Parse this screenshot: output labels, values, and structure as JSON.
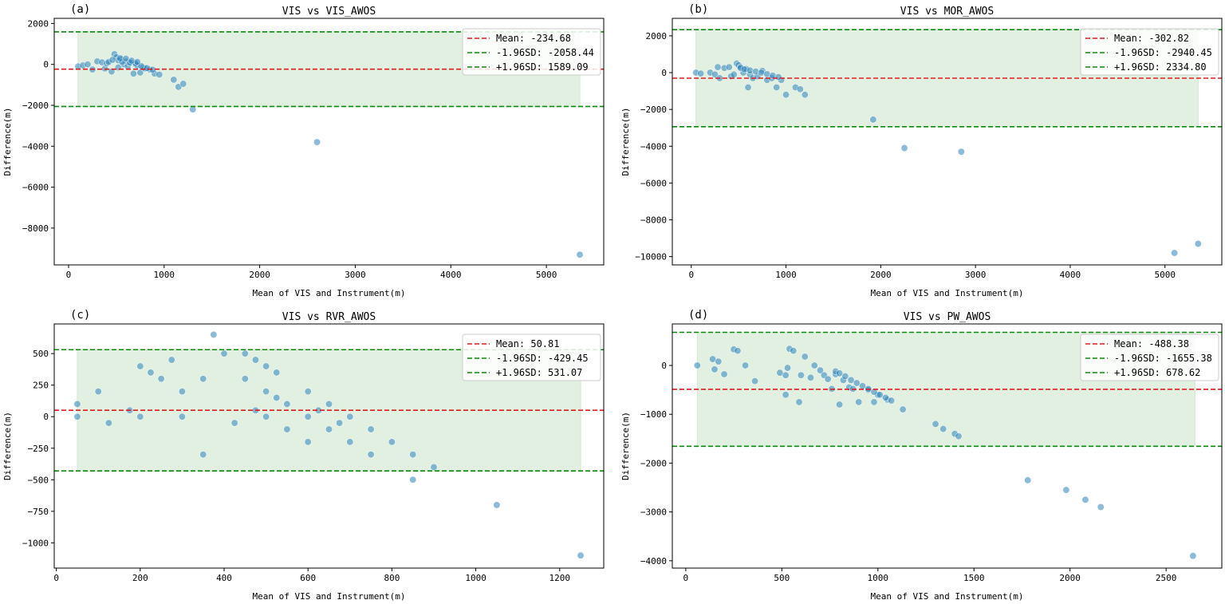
{
  "chart_data": [
    {
      "type": "scatter",
      "panel_label": "(a)",
      "title": "VIS vs VIS_AWOS",
      "xlabel": "Mean of VIS and Instrument(m)",
      "ylabel": "Difference(m)",
      "xlim": [
        -150,
        5600
      ],
      "ylim": [
        -9800,
        2250
      ],
      "xticks": [
        0,
        1000,
        2000,
        3000,
        4000,
        5000
      ],
      "yticks": [
        -8000,
        -6000,
        -4000,
        -2000,
        0,
        2000
      ],
      "mean": -234.68,
      "lower": -2058.44,
      "upper": 1589.09,
      "band_x": [
        100,
        5350
      ],
      "legend_position": "upper right",
      "legend": [
        "Mean: -234.68",
        "-1.96SD: -2058.44",
        "+1.96SD: 1589.09"
      ],
      "points": [
        [
          100,
          -100
        ],
        [
          150,
          -50
        ],
        [
          200,
          0
        ],
        [
          250,
          -250
        ],
        [
          300,
          150
        ],
        [
          350,
          100
        ],
        [
          380,
          -200
        ],
        [
          400,
          50
        ],
        [
          450,
          -350
        ],
        [
          480,
          500
        ],
        [
          500,
          350
        ],
        [
          520,
          -150
        ],
        [
          550,
          250
        ],
        [
          580,
          0
        ],
        [
          600,
          150
        ],
        [
          620,
          -100
        ],
        [
          650,
          100
        ],
        [
          680,
          -450
        ],
        [
          700,
          0
        ],
        [
          720,
          -50
        ],
        [
          750,
          -400
        ],
        [
          780,
          -150
        ],
        [
          800,
          -200
        ],
        [
          850,
          -250
        ],
        [
          900,
          -450
        ],
        [
          950,
          -500
        ],
        [
          1100,
          -750
        ],
        [
          1150,
          -1100
        ],
        [
          1200,
          -950
        ],
        [
          1300,
          -2200
        ],
        [
          2600,
          -3800
        ],
        [
          5350,
          -9300
        ],
        [
          520,
          200
        ],
        [
          560,
          120
        ],
        [
          640,
          80
        ],
        [
          700,
          60
        ],
        [
          760,
          -80
        ],
        [
          820,
          -180
        ],
        [
          880,
          -260
        ],
        [
          420,
          120
        ],
        [
          460,
          220
        ],
        [
          540,
          300
        ],
        [
          600,
          280
        ],
        [
          660,
          180
        ],
        [
          720,
          120
        ]
      ]
    },
    {
      "type": "scatter",
      "panel_label": "(b)",
      "title": "VIS vs MOR_AWOS",
      "xlabel": "Mean of VIS and Instrument(m)",
      "ylabel": "Difference(m)",
      "xlim": [
        -200,
        5600
      ],
      "ylim": [
        -10450,
        2950
      ],
      "xticks": [
        0,
        1000,
        2000,
        3000,
        4000,
        5000
      ],
      "yticks": [
        -10000,
        -8000,
        -6000,
        -4000,
        -2000,
        0,
        2000
      ],
      "mean": -302.82,
      "lower": -2940.45,
      "upper": 2334.8,
      "band_x": [
        50,
        5350
      ],
      "legend_position": "upper right",
      "legend": [
        "Mean: -302.82",
        "-1.96SD: -2940.45",
        "+1.96SD: 2334.80"
      ],
      "points": [
        [
          50,
          0
        ],
        [
          100,
          -50
        ],
        [
          200,
          0
        ],
        [
          250,
          -100
        ],
        [
          280,
          300
        ],
        [
          300,
          -300
        ],
        [
          350,
          250
        ],
        [
          400,
          300
        ],
        [
          420,
          -200
        ],
        [
          450,
          -100
        ],
        [
          480,
          500
        ],
        [
          500,
          400
        ],
        [
          520,
          300
        ],
        [
          550,
          0
        ],
        [
          580,
          200
        ],
        [
          600,
          -800
        ],
        [
          620,
          -100
        ],
        [
          650,
          -300
        ],
        [
          700,
          -200
        ],
        [
          750,
          100
        ],
        [
          800,
          -400
        ],
        [
          850,
          -300
        ],
        [
          900,
          -800
        ],
        [
          950,
          -400
        ],
        [
          1000,
          -1200
        ],
        [
          1100,
          -800
        ],
        [
          1150,
          -900
        ],
        [
          1200,
          -1200
        ],
        [
          1920,
          -2550
        ],
        [
          2250,
          -4100
        ],
        [
          2850,
          -4300
        ],
        [
          5100,
          -9800
        ],
        [
          5350,
          -9300
        ],
        [
          520,
          250
        ],
        [
          560,
          180
        ],
        [
          620,
          120
        ],
        [
          680,
          60
        ],
        [
          740,
          0
        ],
        [
          800,
          -80
        ],
        [
          860,
          -160
        ],
        [
          920,
          -240
        ]
      ]
    },
    {
      "type": "scatter",
      "panel_label": "(c)",
      "title": "VIS vs RVR_AWOS",
      "xlabel": "Mean of VIS and Instrument(m)",
      "ylabel": "Difference(m)",
      "xlim": [
        -5,
        1305
      ],
      "ylim": [
        -1200,
        735
      ],
      "xticks": [
        0,
        200,
        400,
        600,
        800,
        1000,
        1200
      ],
      "yticks": [
        -1000,
        -750,
        -500,
        -250,
        0,
        250,
        500
      ],
      "mean": 50.81,
      "lower": -429.45,
      "upper": 531.07,
      "band_x": [
        50,
        1250
      ],
      "legend_position": "upper right",
      "legend": [
        "Mean: 50.81",
        "-1.96SD: -429.45",
        "+1.96SD: 531.07"
      ],
      "points": [
        [
          50,
          100
        ],
        [
          50,
          0
        ],
        [
          100,
          200
        ],
        [
          125,
          -50
        ],
        [
          175,
          50
        ],
        [
          200,
          400
        ],
        [
          200,
          0
        ],
        [
          225,
          350
        ],
        [
          250,
          300
        ],
        [
          275,
          450
        ],
        [
          300,
          200
        ],
        [
          300,
          0
        ],
        [
          350,
          300
        ],
        [
          350,
          -300
        ],
        [
          375,
          650
        ],
        [
          400,
          500
        ],
        [
          425,
          -50
        ],
        [
          450,
          500
        ],
        [
          450,
          300
        ],
        [
          475,
          450
        ],
        [
          475,
          50
        ],
        [
          500,
          400
        ],
        [
          500,
          200
        ],
        [
          500,
          0
        ],
        [
          525,
          350
        ],
        [
          525,
          150
        ],
        [
          550,
          100
        ],
        [
          550,
          -100
        ],
        [
          600,
          200
        ],
        [
          600,
          0
        ],
        [
          600,
          -200
        ],
        [
          625,
          50
        ],
        [
          650,
          100
        ],
        [
          650,
          -100
        ],
        [
          675,
          -50
        ],
        [
          700,
          0
        ],
        [
          700,
          -200
        ],
        [
          750,
          -100
        ],
        [
          750,
          -300
        ],
        [
          800,
          -200
        ],
        [
          850,
          -300
        ],
        [
          850,
          -500
        ],
        [
          900,
          -400
        ],
        [
          1050,
          -700
        ],
        [
          1250,
          -1100
        ]
      ]
    },
    {
      "type": "scatter",
      "panel_label": "(d)",
      "title": "VIS vs PW_AWOS",
      "xlabel": "Mean of VIS and Instrument(m)",
      "ylabel": "Difference(m)",
      "xlim": [
        -70,
        2790
      ],
      "ylim": [
        -4150,
        850
      ],
      "xticks": [
        0,
        500,
        1000,
        1500,
        2000,
        2500
      ],
      "yticks": [
        -4000,
        -3000,
        -2000,
        -1000,
        0
      ],
      "mean": -488.38,
      "lower": -1655.38,
      "upper": 678.62,
      "band_x": [
        60,
        2650
      ],
      "legend_position": "upper right",
      "legend": [
        "Mean: -488.38",
        "-1.96SD: -1655.38",
        "+1.96SD: 678.62"
      ],
      "points": [
        [
          60,
          0
        ],
        [
          140,
          130
        ],
        [
          150,
          -80
        ],
        [
          170,
          80
        ],
        [
          200,
          -180
        ],
        [
          250,
          330
        ],
        [
          270,
          300
        ],
        [
          310,
          0
        ],
        [
          360,
          -320
        ],
        [
          490,
          -150
        ],
        [
          520,
          -200
        ],
        [
          520,
          -600
        ],
        [
          530,
          -50
        ],
        [
          540,
          340
        ],
        [
          560,
          300
        ],
        [
          590,
          -750
        ],
        [
          600,
          -200
        ],
        [
          620,
          180
        ],
        [
          650,
          -250
        ],
        [
          670,
          0
        ],
        [
          700,
          -100
        ],
        [
          720,
          -200
        ],
        [
          740,
          -280
        ],
        [
          760,
          -480
        ],
        [
          780,
          -180
        ],
        [
          800,
          -800
        ],
        [
          820,
          -300
        ],
        [
          850,
          -450
        ],
        [
          870,
          -480
        ],
        [
          900,
          -750
        ],
        [
          950,
          -500
        ],
        [
          980,
          -750
        ],
        [
          1000,
          -600
        ],
        [
          1050,
          -700
        ],
        [
          1130,
          -900
        ],
        [
          1300,
          -1200
        ],
        [
          1340,
          -1300
        ],
        [
          1400,
          -1400
        ],
        [
          1420,
          -1450
        ],
        [
          1780,
          -2350
        ],
        [
          1980,
          -2550
        ],
        [
          2080,
          -2750
        ],
        [
          2160,
          -2900
        ],
        [
          2640,
          -3900
        ],
        [
          780,
          -120
        ],
        [
          800,
          -160
        ],
        [
          830,
          -220
        ],
        [
          860,
          -300
        ],
        [
          890,
          -360
        ],
        [
          920,
          -420
        ],
        [
          950,
          -480
        ],
        [
          980,
          -540
        ],
        [
          1010,
          -600
        ],
        [
          1040,
          -660
        ],
        [
          1070,
          -720
        ]
      ]
    }
  ]
}
